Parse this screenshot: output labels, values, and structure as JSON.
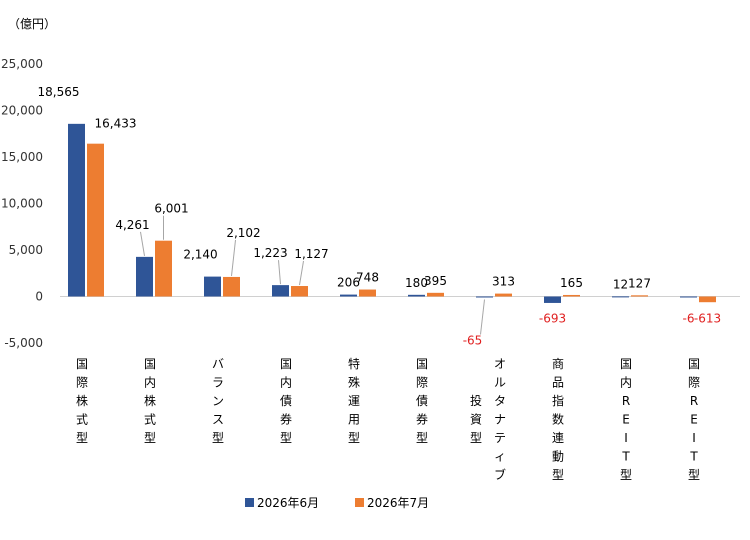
{
  "chart_data": {
    "type": "bar",
    "unit_label": "（億円）",
    "ylim": [
      -5000,
      25000
    ],
    "yticks": [
      -5000,
      0,
      5000,
      10000,
      15000,
      20000,
      25000
    ],
    "ytick_labels": [
      "-5,000",
      "0",
      "5,000",
      "10,000",
      "15,000",
      "20,000",
      "25,000"
    ],
    "grid": false,
    "legend_position": "bottom",
    "categories": [
      "国際株式型",
      "国内株式型",
      "バランス型",
      "国内債券型",
      "特殊運用型",
      "国際債券型",
      "オルタナティブ投資型",
      "商品指数連動型",
      "国内REIT型",
      "国際REIT型"
    ],
    "category_lines": [
      [
        "国際株式型"
      ],
      [
        "国内株式型"
      ],
      [
        "バランス型"
      ],
      [
        "国内債券型"
      ],
      [
        "特殊運用型"
      ],
      [
        "国際債券型"
      ],
      [
        "オルタナティブ",
        "投資型"
      ],
      [
        "商品指数連動型"
      ],
      [
        "国内REIT型"
      ],
      [
        "国際REIT型"
      ]
    ],
    "series": [
      {
        "name": "2026年6月",
        "color": "#2f5597",
        "values": [
          18565,
          4261,
          2140,
          1223,
          206,
          180,
          -65,
          -693,
          12,
          -6
        ],
        "labels": [
          "18,565",
          "4,261",
          "2,140",
          "1,223",
          "206",
          "180",
          "-65",
          "-693",
          "12",
          "-6"
        ]
      },
      {
        "name": "2026年7月",
        "color": "#ed7d31",
        "values": [
          16433,
          6001,
          2102,
          1127,
          748,
          395,
          313,
          165,
          127,
          -613
        ],
        "labels": [
          "16,433",
          "6,001",
          "2,102",
          "1,127",
          "748",
          "395",
          "313",
          "165",
          "127",
          "-613"
        ]
      }
    ],
    "negative_label_color": "#e02020"
  }
}
